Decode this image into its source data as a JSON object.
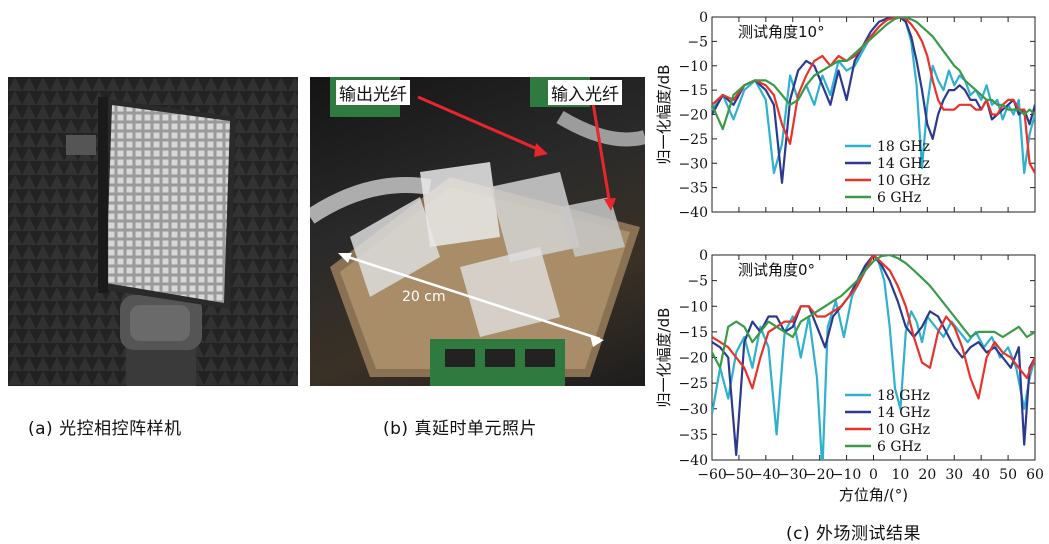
{
  "captions": {
    "a": "(a) 光控相控阵样机",
    "b": "(b) 真延时单元照片",
    "c": "(c) 外场测试结果"
  },
  "photo_b": {
    "label_output": "输出光纤",
    "label_input": "输入光纤",
    "label_scale": "20 cm",
    "arrow_color": "#e8262b"
  },
  "chart_data": [
    {
      "type": "line",
      "title": "测试角度10°",
      "xlabel": "",
      "ylabel": "归一化幅度/dB",
      "xlim": [
        -60,
        60
      ],
      "ylim": [
        -40,
        0
      ],
      "yticks": [
        0,
        -5,
        -10,
        -15,
        -20,
        -25,
        -30,
        -35,
        -40
      ],
      "grid": false,
      "legend_position": "center-right",
      "series": [
        {
          "name": "18 GHz",
          "color": "#2eb0cf",
          "x": [
            -60,
            -56,
            -52,
            -48,
            -44,
            -40,
            -37,
            -34,
            -31,
            -28,
            -25,
            -22,
            -19,
            -16,
            -13,
            -10,
            -7,
            -4,
            -1,
            2,
            5,
            8,
            10,
            12,
            14,
            16,
            18,
            20,
            22,
            24,
            26,
            28,
            30,
            32,
            34,
            36,
            38,
            40,
            42,
            44,
            46,
            48,
            50,
            52,
            54,
            56,
            58,
            60
          ],
          "y": [
            -19,
            -16,
            -21,
            -15,
            -13,
            -17,
            -32,
            -26,
            -12,
            -17,
            -14,
            -18,
            -12,
            -16,
            -9,
            -11,
            -10,
            -7,
            -4,
            -2,
            -0.5,
            -0.1,
            0,
            -1,
            -5,
            -14,
            -31,
            -18,
            -10,
            -13,
            -15,
            -11,
            -14,
            -12,
            -13,
            -16,
            -15,
            -17,
            -14,
            -18,
            -17,
            -21,
            -18,
            -20,
            -17,
            -32,
            -24,
            -20
          ]
        },
        {
          "name": "14 GHz",
          "color": "#2b3a8f",
          "x": [
            -60,
            -56,
            -52,
            -48,
            -44,
            -40,
            -37,
            -34,
            -31,
            -28,
            -25,
            -22,
            -19,
            -16,
            -13,
            -10,
            -7,
            -4,
            -1,
            2,
            5,
            8,
            10,
            12,
            14,
            16,
            18,
            20,
            22,
            24,
            26,
            28,
            30,
            32,
            34,
            36,
            38,
            40,
            42,
            44,
            46,
            48,
            50,
            52,
            54,
            56,
            58,
            60
          ],
          "y": [
            -20,
            -16,
            -18,
            -14,
            -13,
            -15,
            -18,
            -34,
            -17,
            -11,
            -9,
            -10,
            -14,
            -18,
            -11,
            -17,
            -9,
            -6,
            -3,
            -1,
            -0.3,
            0,
            -0.1,
            -1,
            -4,
            -9,
            -15,
            -22,
            -25,
            -20,
            -17,
            -15,
            -15,
            -14,
            -15,
            -17,
            -17,
            -19,
            -17,
            -21,
            -20,
            -19,
            -18,
            -17,
            -20,
            -19,
            -22,
            -18
          ]
        },
        {
          "name": "10 GHz",
          "color": "#e8332b",
          "x": [
            -60,
            -56,
            -52,
            -48,
            -44,
            -40,
            -37,
            -34,
            -31,
            -28,
            -25,
            -22,
            -19,
            -16,
            -13,
            -10,
            -7,
            -4,
            -1,
            2,
            5,
            8,
            10,
            12,
            14,
            16,
            18,
            20,
            22,
            24,
            26,
            28,
            30,
            32,
            34,
            36,
            38,
            40,
            42,
            44,
            46,
            48,
            50,
            52,
            54,
            56,
            58,
            60
          ],
          "y": [
            -18,
            -16,
            -17,
            -14,
            -13,
            -14,
            -16,
            -22,
            -26,
            -16,
            -12,
            -9,
            -8,
            -10,
            -8,
            -9,
            -8,
            -6,
            -4,
            -2,
            -0.6,
            -0.1,
            0,
            -0.4,
            -1.5,
            -3,
            -5,
            -8,
            -13,
            -17,
            -19,
            -19,
            -19,
            -18,
            -18,
            -18,
            -19,
            -19,
            -17,
            -20,
            -20,
            -18,
            -17,
            -17,
            -19,
            -19,
            -30,
            -32
          ]
        },
        {
          "name": "6 GHz",
          "color": "#3a9a4a",
          "x": [
            -60,
            -56,
            -52,
            -48,
            -44,
            -40,
            -37,
            -34,
            -31,
            -28,
            -25,
            -22,
            -19,
            -16,
            -13,
            -10,
            -7,
            -4,
            -1,
            2,
            5,
            8,
            10,
            12,
            14,
            16,
            18,
            20,
            22,
            24,
            26,
            28,
            30,
            32,
            34,
            36,
            38,
            40,
            42,
            44,
            46,
            48,
            50,
            52,
            54,
            56,
            58,
            60
          ],
          "y": [
            -18,
            -23,
            -16,
            -14,
            -13,
            -13,
            -14,
            -16,
            -18,
            -17,
            -14,
            -12,
            -11,
            -10,
            -9,
            -9,
            -7.5,
            -6,
            -4.5,
            -3,
            -1.5,
            -0.4,
            0,
            -0.1,
            -0.5,
            -1,
            -2,
            -3,
            -4,
            -5.5,
            -7,
            -8.5,
            -10,
            -11,
            -13,
            -14,
            -15,
            -16,
            -17,
            -17,
            -18,
            -18,
            -19,
            -19,
            -19,
            -20,
            -19,
            -20
          ]
        }
      ]
    },
    {
      "type": "line",
      "title": "测试角度0°",
      "xlabel": "方位角/(°)",
      "ylabel": "归一化幅度/dB",
      "xlim": [
        -60,
        60
      ],
      "ylim": [
        -40,
        0
      ],
      "xticks": [
        -60,
        -50,
        -40,
        -30,
        -20,
        -10,
        0,
        10,
        20,
        30,
        40,
        50,
        60
      ],
      "yticks": [
        0,
        -5,
        -10,
        -15,
        -20,
        -25,
        -30,
        -35,
        -40
      ],
      "grid": false,
      "legend_position": "lower-center",
      "series": [
        {
          "name": "18 GHz",
          "color": "#2eb0cf",
          "x": [
            -60,
            -57,
            -54,
            -51,
            -48,
            -45,
            -42,
            -39,
            -36,
            -33,
            -30,
            -27,
            -24,
            -21,
            -19,
            -17,
            -14,
            -11,
            -8,
            -5,
            -2,
            0,
            2,
            4,
            6,
            8,
            10,
            12,
            14,
            16,
            18,
            20,
            23,
            26,
            29,
            32,
            35,
            38,
            41,
            44,
            47,
            50,
            53,
            56,
            58,
            60
          ],
          "y": [
            -31,
            -22,
            -28,
            -19,
            -16,
            -22,
            -14,
            -18,
            -35,
            -15,
            -12,
            -20,
            -12,
            -24,
            -42,
            -14,
            -9,
            -16,
            -8,
            -5,
            -1.5,
            0,
            -1.5,
            -5,
            -14,
            -26,
            -30,
            -15,
            -11,
            -13,
            -17,
            -12,
            -14,
            -16,
            -13,
            -15,
            -17,
            -15,
            -18,
            -16,
            -20,
            -18,
            -22,
            -30,
            -24,
            -20
          ]
        },
        {
          "name": "14 GHz",
          "color": "#2b3a8f",
          "x": [
            -60,
            -57,
            -54,
            -51,
            -48,
            -45,
            -42,
            -39,
            -36,
            -33,
            -30,
            -27,
            -24,
            -21,
            -18,
            -15,
            -12,
            -9,
            -6,
            -3,
            0,
            3,
            6,
            9,
            12,
            15,
            18,
            21,
            24,
            27,
            30,
            33,
            36,
            39,
            42,
            45,
            48,
            51,
            54,
            56,
            58,
            60
          ],
          "y": [
            -17,
            -18,
            -20,
            -39,
            -17,
            -13,
            -15,
            -12,
            -12,
            -15,
            -14,
            -10,
            -10,
            -14,
            -18,
            -12,
            -10,
            -8,
            -5,
            -2,
            0,
            -2,
            -5,
            -9,
            -14,
            -16,
            -14,
            -11,
            -12,
            -15,
            -18,
            -20,
            -18,
            -17,
            -19,
            -18,
            -20,
            -22,
            -18,
            -37,
            -22,
            -20
          ]
        },
        {
          "name": "10 GHz",
          "color": "#e8332b",
          "x": [
            -60,
            -57,
            -54,
            -51,
            -48,
            -45,
            -42,
            -39,
            -36,
            -33,
            -30,
            -27,
            -24,
            -21,
            -18,
            -15,
            -12,
            -9,
            -6,
            -3,
            0,
            3,
            6,
            9,
            12,
            15,
            18,
            21,
            24,
            27,
            30,
            33,
            36,
            39,
            42,
            45,
            48,
            51,
            54,
            57,
            60
          ],
          "y": [
            -16,
            -17,
            -18,
            -20,
            -22,
            -26,
            -20,
            -15,
            -14,
            -13,
            -13,
            -10,
            -10,
            -12,
            -12,
            -11,
            -10,
            -8,
            -6,
            -3,
            0,
            -1.5,
            -3,
            -6,
            -10,
            -16,
            -21,
            -22,
            -15,
            -12,
            -14,
            -18,
            -24,
            -28,
            -20,
            -17,
            -19,
            -20,
            -22,
            -24,
            -20
          ]
        },
        {
          "name": "6 GHz",
          "color": "#3a9a4a",
          "x": [
            -60,
            -57,
            -54,
            -51,
            -48,
            -45,
            -42,
            -39,
            -36,
            -33,
            -30,
            -27,
            -24,
            -21,
            -18,
            -15,
            -12,
            -9,
            -6,
            -3,
            0,
            3,
            6,
            9,
            12,
            15,
            18,
            21,
            24,
            27,
            30,
            33,
            36,
            39,
            42,
            45,
            48,
            51,
            54,
            57,
            60
          ],
          "y": [
            -19,
            -22,
            -14,
            -13,
            -14,
            -17,
            -15,
            -13,
            -14,
            -15,
            -16,
            -13,
            -12,
            -11,
            -10,
            -9,
            -8,
            -6.5,
            -5,
            -3,
            -1.2,
            -0.2,
            0,
            -0.6,
            -1.6,
            -3,
            -4.5,
            -6,
            -8,
            -10,
            -12,
            -14,
            -16,
            -15,
            -15,
            -15,
            -16,
            -15,
            -14,
            -16,
            -15
          ]
        }
      ]
    }
  ]
}
